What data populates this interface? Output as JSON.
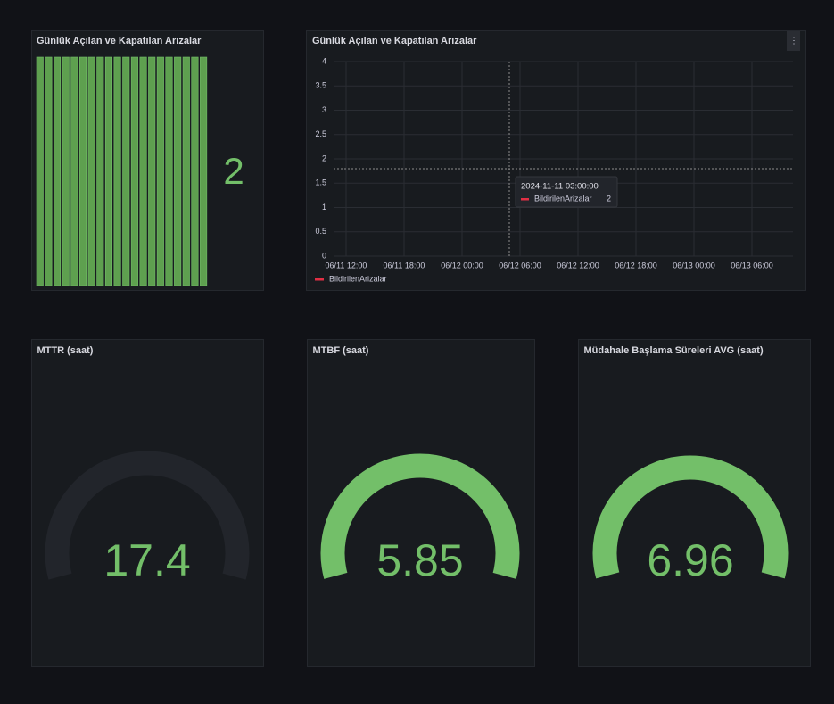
{
  "stat_panel": {
    "title": "Günlük Açılan ve Kapatılan Arızalar",
    "value": 2
  },
  "timeseries_panel": {
    "title": "Günlük Açılan ve Kapatılan Arızalar",
    "yticks": [
      0,
      0.5,
      1,
      1.5,
      2,
      2.5,
      3,
      3.5,
      4
    ],
    "xticks": [
      "06/11 12:00",
      "06/11 18:00",
      "06/12 00:00",
      "06/12 06:00",
      "06/12 12:00",
      "06/12 18:00",
      "06/13 00:00",
      "06/13 06:00"
    ],
    "tooltip": {
      "time": "2024-11-11 03:00:00",
      "series": "BildirilenArizalar",
      "value": 2
    },
    "legend": [
      "BildirilenArizalar"
    ]
  },
  "gauges": [
    {
      "title": "MTTR (saat)",
      "value": 17.4
    },
    {
      "title": "MTBF (saat)",
      "value": 5.85
    },
    {
      "title": "Müdahale Başlama Süreleri AVG (saat)",
      "value": 6.96
    }
  ]
}
